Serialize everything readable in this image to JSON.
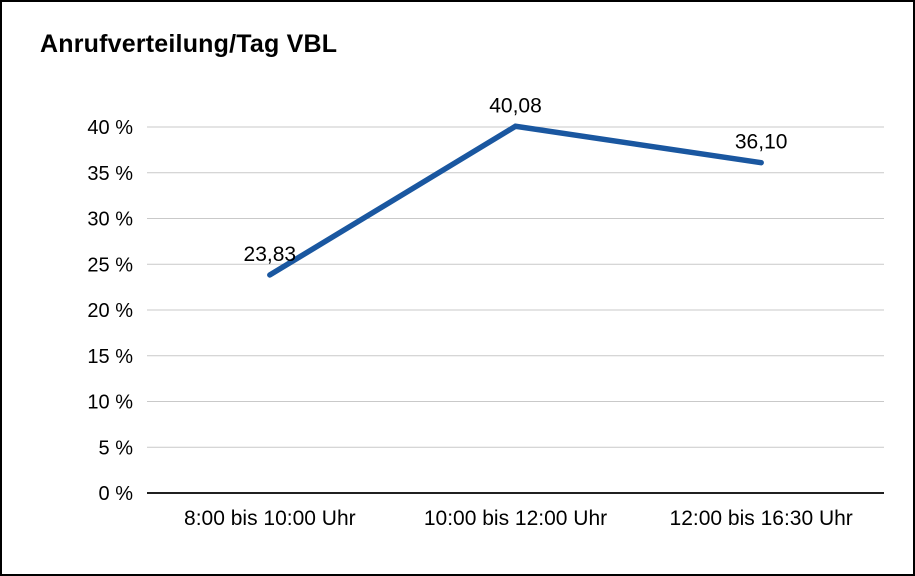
{
  "chart_data": {
    "type": "line",
    "title": "Anrufverteilung/Tag VBL",
    "categories": [
      "8:00 bis 10:00 Uhr",
      "10:00 bis 12:00 Uhr",
      "12:00 bis 16:30 Uhr"
    ],
    "values": [
      23.83,
      40.08,
      36.1
    ],
    "point_labels": [
      "23,83",
      "40,08",
      "36,10"
    ],
    "xlabel": "",
    "ylabel": "",
    "ylim": [
      0,
      40
    ],
    "ytick_values": [
      0,
      5,
      10,
      15,
      20,
      25,
      30,
      35,
      40
    ],
    "ytick_labels": [
      "0 %",
      "5 %",
      "10 %",
      "15 %",
      "20 %",
      "25 %",
      "30 %",
      "35 %",
      "40 %"
    ],
    "grid": true,
    "legend": "none",
    "line_color": "#1a57a0",
    "grid_color": "#c9c9c9",
    "axis_color": "#000000",
    "label_color": "#000000"
  }
}
